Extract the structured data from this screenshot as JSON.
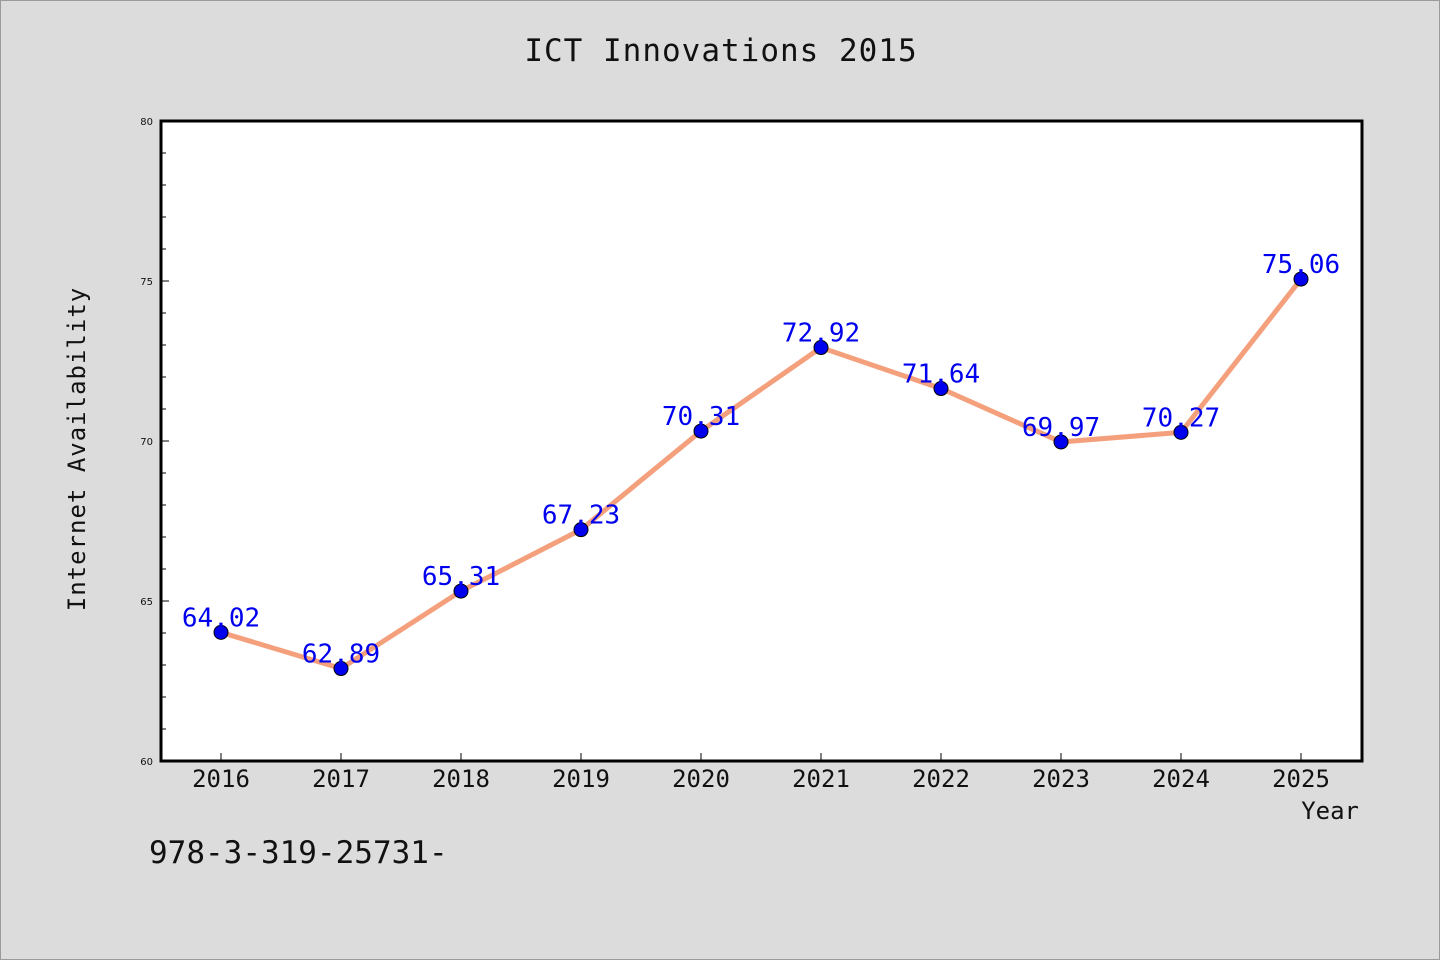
{
  "chart_data": {
    "type": "line",
    "title": "ICT Innovations 2015",
    "xlabel": "Year",
    "ylabel": "Internet Availability",
    "x": [
      "2016",
      "2017",
      "2018",
      "2019",
      "2020",
      "2021",
      "2022",
      "2023",
      "2024",
      "2025"
    ],
    "series": [
      {
        "values": [
          64.02,
          62.89,
          65.31,
          67.23,
          70.31,
          72.92,
          71.64,
          69.97,
          70.27,
          75.06
        ],
        "data_labels": [
          "64.02",
          "62.89",
          "65.31",
          "67.23",
          "70.31",
          "72.92",
          "71.64",
          "69.97",
          "70.27",
          "75.06"
        ],
        "line_color": "#f4a07c",
        "marker_color": "#0000ee",
        "marker": "circle"
      }
    ],
    "ylim": [
      60,
      80
    ],
    "y_ticks": [
      "60",
      "65",
      "70",
      "75",
      "80"
    ],
    "y_minor_step": 1,
    "grid": false,
    "legend": "none",
    "colors": {
      "figure_background": "#dcdcdc",
      "plot_background": "#ffffff",
      "data_label": "#0000ee",
      "text": "#111111"
    }
  },
  "footnote": "978-3-319-25731-"
}
